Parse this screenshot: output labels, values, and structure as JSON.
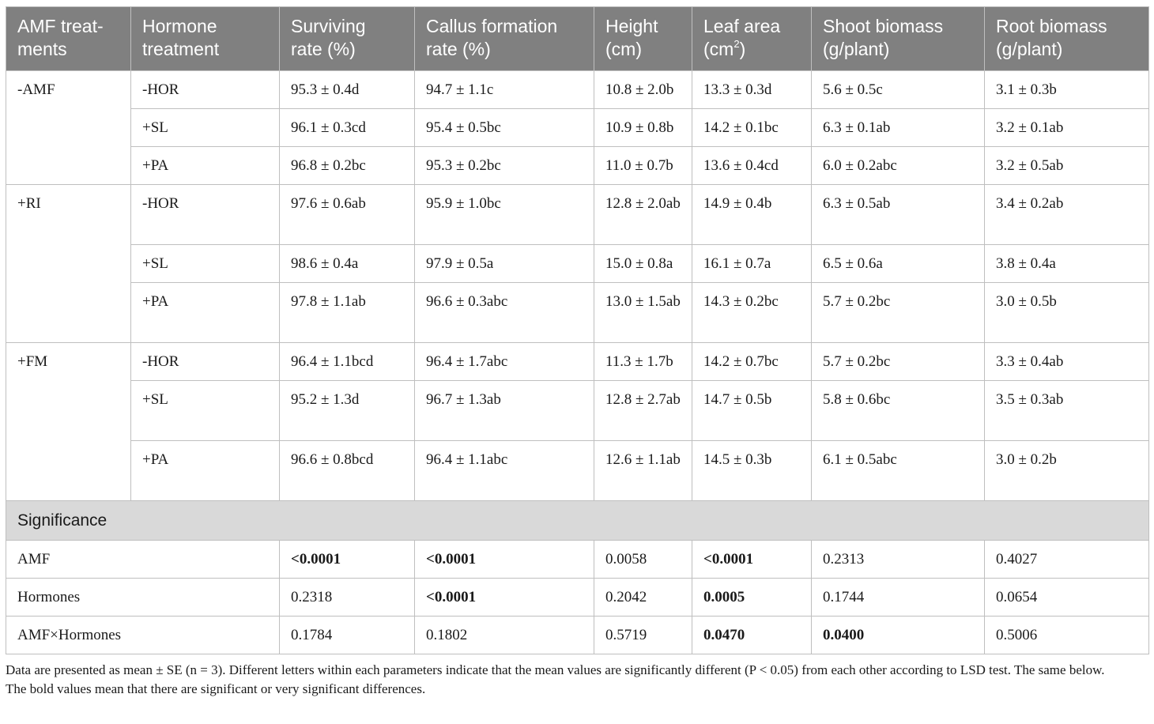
{
  "headers": {
    "amf_a": "AMF treat-",
    "amf_b": "ments",
    "hormone_a": "Hormone",
    "hormone_b": "treatment",
    "surviving_a": "Surviving",
    "surviving_b": "rate (%)",
    "callus_a": "Callus formation",
    "callus_b": "rate (%)",
    "height_a": "Height",
    "height_b": "(cm)",
    "leaf_a": "Leaf area",
    "leaf_b": "(cm",
    "leaf_sup": "2",
    "leaf_c": ")",
    "shoot_a": "Shoot biomass",
    "shoot_b": "(g/plant)",
    "root_a": "Root biomass",
    "root_b": "(g/plant)"
  },
  "groups": [
    {
      "amf": "-AMF",
      "rows": [
        {
          "hormone": "-HOR",
          "surviving": "95.3 ± 0.4d",
          "callus": "94.7 ± 1.1c",
          "height": "10.8 ± 2.0b",
          "leaf": "13.3 ± 0.3d",
          "shoot": "5.6 ± 0.5c",
          "root": "3.1 ± 0.3b"
        },
        {
          "hormone": "+SL",
          "surviving": "96.1 ± 0.3cd",
          "callus": "95.4 ± 0.5bc",
          "height": "10.9 ± 0.8b",
          "leaf": "14.2 ± 0.1bc",
          "shoot": "6.3 ± 0.1ab",
          "root": "3.2 ± 0.1ab"
        },
        {
          "hormone": "+PA",
          "surviving": "96.8 ± 0.2bc",
          "callus": "95.3 ± 0.2bc",
          "height": "11.0 ± 0.7b",
          "leaf": "13.6 ± 0.4cd",
          "shoot": "6.0 ± 0.2abc",
          "root": "3.2 ± 0.5ab"
        }
      ]
    },
    {
      "amf": "+RI",
      "rows": [
        {
          "hormone": "-HOR",
          "surviving": "97.6 ± 0.6ab",
          "callus": "95.9 ± 1.0bc",
          "height": "12.8 ± 2.0ab",
          "leaf": "14.9 ± 0.4b",
          "shoot": "6.3 ± 0.5ab",
          "root": "3.4 ± 0.2ab"
        },
        {
          "hormone": "+SL",
          "surviving": "98.6 ± 0.4a",
          "callus": "97.9 ± 0.5a",
          "height": "15.0 ± 0.8a",
          "leaf": "16.1 ± 0.7a",
          "shoot": "6.5 ± 0.6a",
          "root": "3.8 ± 0.4a"
        },
        {
          "hormone": "+PA",
          "surviving": "97.8 ± 1.1ab",
          "callus": "96.6 ± 0.3abc",
          "height": "13.0 ± 1.5ab",
          "leaf": "14.3 ± 0.2bc",
          "shoot": "5.7 ± 0.2bc",
          "root": "3.0 ± 0.5b"
        }
      ]
    },
    {
      "amf": "+FM",
      "rows": [
        {
          "hormone": "-HOR",
          "surviving": "96.4 ± 1.1bcd",
          "callus": "96.4 ± 1.7abc",
          "height": "11.3 ± 1.7b",
          "leaf": "14.2 ± 0.7bc",
          "shoot": "5.7 ± 0.2bc",
          "root": "3.3 ± 0.4ab"
        },
        {
          "hormone": "+SL",
          "surviving": "95.2 ± 1.3d",
          "callus": "96.7 ± 1.3ab",
          "height": "12.8 ± 2.7ab",
          "leaf": "14.7 ± 0.5b",
          "shoot": "5.8 ± 0.6bc",
          "root": "3.5 ± 0.3ab"
        },
        {
          "hormone": "+PA",
          "surviving": "96.6 ± 0.8bcd",
          "callus": "96.4 ± 1.1abc",
          "height": "12.6 ± 1.1ab",
          "leaf": "14.5 ± 0.3b",
          "shoot": "6.1 ± 0.5abc",
          "root": "3.0 ± 0.2b"
        }
      ]
    }
  ],
  "significance": {
    "label": "Significance",
    "rows": [
      {
        "factor": "AMF",
        "surviving": "<0.0001",
        "callus": "<0.0001",
        "height": "0.0058",
        "leaf": "<0.0001",
        "shoot": "0.2313",
        "root": "0.4027"
      },
      {
        "factor": "Hormones",
        "surviving": "0.2318",
        "callus": "<0.0001",
        "height": "0.2042",
        "leaf": "0.0005",
        "shoot": "0.1744",
        "root": "0.0654"
      },
      {
        "factor": "AMF×Hormones",
        "surviving": "0.1784",
        "callus": "0.1802",
        "height": "0.5719",
        "leaf": "0.0470",
        "shoot": "0.0400",
        "root": "0.5006"
      }
    ]
  },
  "footnotes": {
    "note1": "Data are presented as mean ± SE (n = 3). Different letters within each parameters indicate that the mean values are significantly different (P < 0.05) from each other according to LSD test. The same below.",
    "note2": "The bold values mean that there are significant or very significant differences."
  }
}
